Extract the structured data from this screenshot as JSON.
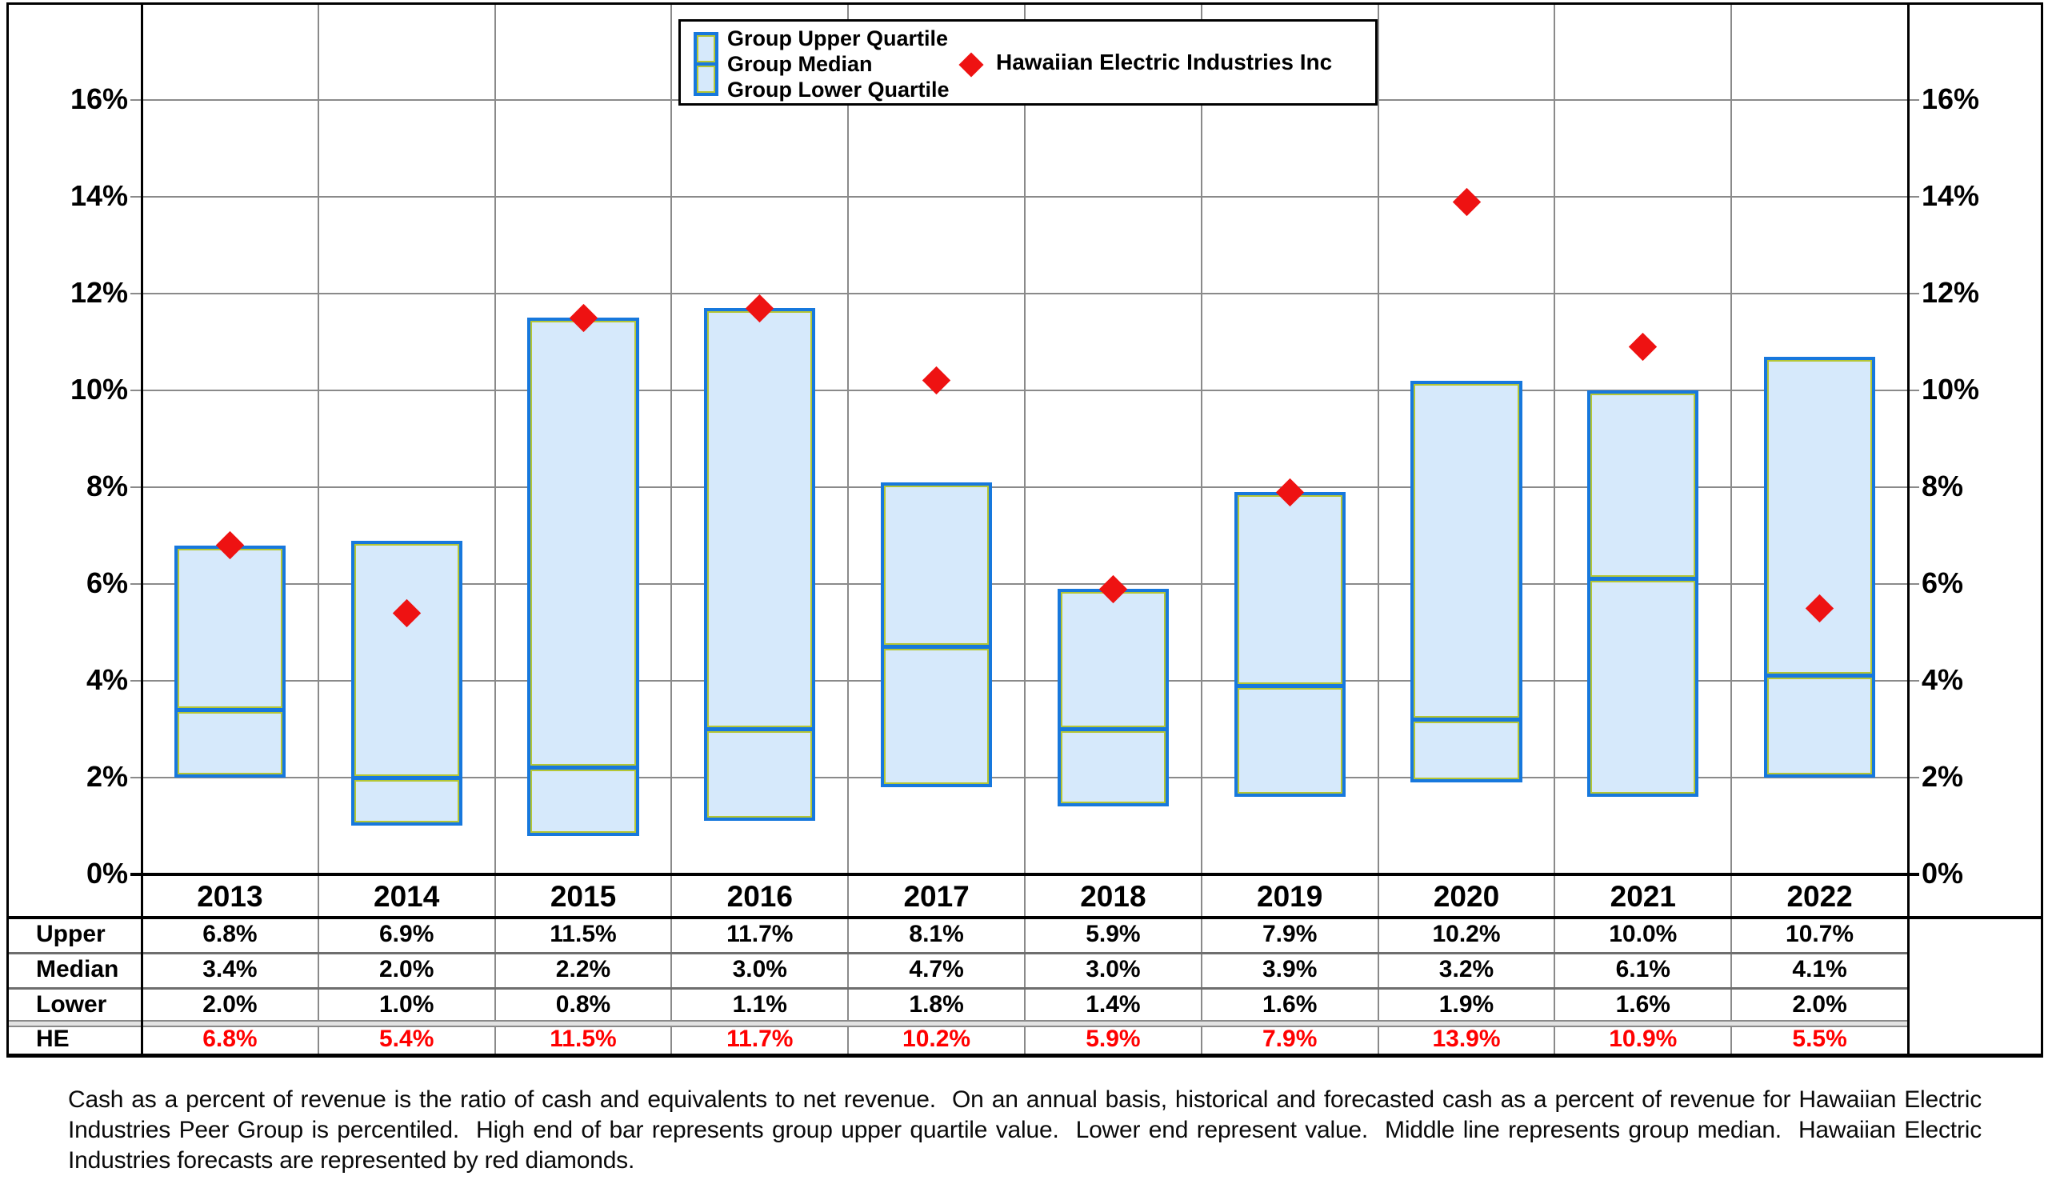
{
  "chart_data": {
    "type": "bar",
    "subtype": "floating-quartile-range-bars-with-diamond-overlay",
    "title": "",
    "xlabel": "",
    "ylabel": "",
    "categories": [
      "2013",
      "2014",
      "2015",
      "2016",
      "2017",
      "2018",
      "2019",
      "2020",
      "2021",
      "2022"
    ],
    "series": [
      {
        "name": "Group Upper Quartile",
        "values": [
          6.8,
          6.9,
          11.5,
          11.7,
          8.1,
          5.9,
          7.9,
          10.2,
          10.0,
          10.7
        ]
      },
      {
        "name": "Group Median",
        "values": [
          3.4,
          2.0,
          2.2,
          3.0,
          4.7,
          3.0,
          3.9,
          3.2,
          6.1,
          4.1
        ]
      },
      {
        "name": "Group Lower Quartile",
        "values": [
          2.0,
          1.0,
          0.8,
          1.1,
          1.8,
          1.4,
          1.6,
          1.9,
          1.6,
          2.0
        ]
      },
      {
        "name": "Hawaiian Electric Industries Inc",
        "marker": "red-diamond",
        "values": [
          6.8,
          5.4,
          11.5,
          11.7,
          10.2,
          5.9,
          7.9,
          13.9,
          10.9,
          5.5
        ]
      }
    ],
    "ylim": [
      0,
      18
    ],
    "ytick_step": 2,
    "ytick_labels": [
      "0%",
      "2%",
      "4%",
      "6%",
      "8%",
      "10%",
      "12%",
      "14%",
      "16%"
    ],
    "y_axis_sides": "both",
    "grid": true,
    "legend_position": "top-center",
    "colors": {
      "bar_fill": "#d6e9fb",
      "bar_border": "#1778dd",
      "bar_accent": "#b5c634",
      "diamond": "#ee1212",
      "gridline": "#8a8a8a",
      "he_table_text": "#ff0000"
    }
  },
  "legend": {
    "items": [
      {
        "label": "Group Upper Quartile"
      },
      {
        "label": "Group Median"
      },
      {
        "label": "Group Lower Quartile"
      }
    ],
    "marker_item": {
      "label": "Hawaiian Electric Industries Inc"
    }
  },
  "table": {
    "row_labels": [
      "Upper",
      "Median",
      "Lower",
      "HE"
    ],
    "rows": [
      [
        "6.8%",
        "6.9%",
        "11.5%",
        "11.7%",
        "8.1%",
        "5.9%",
        "7.9%",
        "10.2%",
        "10.0%",
        "10.7%"
      ],
      [
        "3.4%",
        "2.0%",
        "2.2%",
        "3.0%",
        "4.7%",
        "3.0%",
        "3.9%",
        "3.2%",
        "6.1%",
        "4.1%"
      ],
      [
        "2.0%",
        "1.0%",
        "0.8%",
        "1.1%",
        "1.8%",
        "1.4%",
        "1.6%",
        "1.9%",
        "1.6%",
        "2.0%"
      ],
      [
        "6.8%",
        "5.4%",
        "11.5%",
        "11.7%",
        "10.2%",
        "5.9%",
        "7.9%",
        "13.9%",
        "10.9%",
        "5.5%"
      ]
    ]
  },
  "footnote": {
    "text": "Cash as a percent of revenue is the ratio of cash and equivalents to net revenue.  On an annual basis, historical and forecasted cash as a percent of revenue for Hawaiian Electric Industries Peer Group is percentiled.  High end of bar represents group upper quartile value.  Lower end represent value.  Middle line represents group median.  Hawaiian Electric Industries forecasts are represented by red diamonds."
  }
}
